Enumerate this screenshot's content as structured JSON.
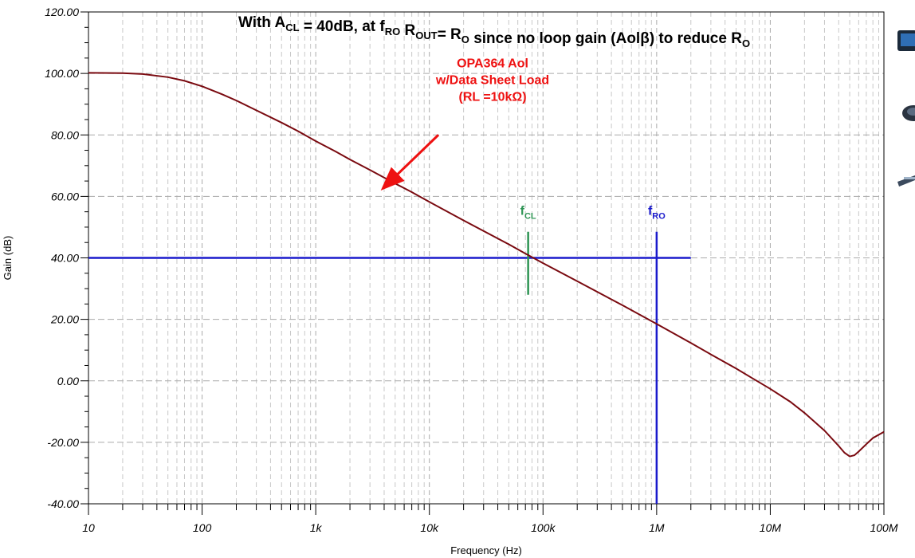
{
  "chart_data": {
    "type": "line",
    "title": {
      "segments": [
        {
          "t": "With A"
        },
        {
          "t": "CL",
          "sub": true
        },
        {
          "t": " = 40dB, at f"
        },
        {
          "t": "RO",
          "sub": true
        },
        {
          "t": " R"
        },
        {
          "t": "OUT",
          "sub": true
        },
        {
          "t": "= R"
        },
        {
          "t": "O",
          "sub": true
        },
        {
          "t": " since no loop gain (Aol"
        },
        {
          "t": "β"
        },
        {
          "t": ") to reduce R"
        },
        {
          "t": "O",
          "sub": true
        }
      ]
    },
    "xlabel": "Frequency (Hz)",
    "ylabel": "Gain (dB)",
    "x_scale": "log",
    "xlim": [
      10,
      100000000
    ],
    "ylim": [
      -40,
      120
    ],
    "x_ticks": [
      {
        "value": 10,
        "label": "10"
      },
      {
        "value": 100,
        "label": "100"
      },
      {
        "value": 1000,
        "label": "1k"
      },
      {
        "value": 10000,
        "label": "10k"
      },
      {
        "value": 100000,
        "label": "100k"
      },
      {
        "value": 1000000,
        "label": "1M"
      },
      {
        "value": 10000000,
        "label": "10M"
      },
      {
        "value": 100000000,
        "label": "100M"
      }
    ],
    "y_ticks": [
      {
        "value": 120,
        "label": "120.00"
      },
      {
        "value": 100,
        "label": "100.00"
      },
      {
        "value": 80,
        "label": "80.00"
      },
      {
        "value": 60,
        "label": "60.00"
      },
      {
        "value": 40,
        "label": "40.00"
      },
      {
        "value": 20,
        "label": "20.00"
      },
      {
        "value": 0,
        "label": "0.00"
      },
      {
        "value": -20,
        "label": "-20.00"
      },
      {
        "value": -40,
        "label": "-40.00"
      }
    ],
    "grid": true,
    "series": [
      {
        "name": "OPA364 Aol w/Data Sheet Load (RL =10kΩ)",
        "color": "#7a0a10",
        "points": [
          [
            10,
            100.2
          ],
          [
            20,
            100.1
          ],
          [
            30,
            99.8
          ],
          [
            50,
            98.8
          ],
          [
            70,
            97.6
          ],
          [
            100,
            95.8
          ],
          [
            150,
            93.2
          ],
          [
            200,
            91.2
          ],
          [
            300,
            88.0
          ],
          [
            500,
            84.0
          ],
          [
            700,
            81.2
          ],
          [
            1000,
            78.0
          ],
          [
            1500,
            74.6
          ],
          [
            2000,
            72.0
          ],
          [
            3000,
            68.6
          ],
          [
            5000,
            64.2
          ],
          [
            7000,
            61.4
          ],
          [
            10000,
            58.2
          ],
          [
            20000,
            52.2
          ],
          [
            50000,
            44.4
          ],
          [
            70000,
            41.4
          ],
          [
            100000,
            38.3
          ],
          [
            200000,
            32.4
          ],
          [
            500000,
            24.6
          ],
          [
            1000000,
            18.5
          ],
          [
            2000000,
            12.3
          ],
          [
            3000000,
            8.6
          ],
          [
            5000000,
            4.0
          ],
          [
            7000000,
            0.8
          ],
          [
            10000000,
            -2.6
          ],
          [
            15000000,
            -6.8
          ],
          [
            20000000,
            -10.4
          ],
          [
            30000000,
            -16.2
          ],
          [
            40000000,
            -21.2
          ],
          [
            45000000,
            -23.4
          ],
          [
            50000000,
            -24.6
          ],
          [
            55000000,
            -24.2
          ],
          [
            60000000,
            -23.0
          ],
          [
            70000000,
            -20.6
          ],
          [
            80000000,
            -18.6
          ],
          [
            100000000,
            -16.6
          ]
        ]
      }
    ],
    "reference_lines": [
      {
        "kind": "horizontal",
        "y": 40,
        "x_from": 10,
        "x_to": 2000000,
        "color": "#1a1acc"
      },
      {
        "kind": "vertical",
        "x": 1000000,
        "y_from": -40,
        "y_to": 48.5,
        "color": "#1a1acc"
      },
      {
        "kind": "vertical",
        "x": 74000,
        "y_from": 28,
        "y_to": 48.5,
        "color": "#2e9454"
      }
    ],
    "annotations": [
      {
        "name": "aol-annotation",
        "lines": [
          "OPA364 Aol",
          "w/Data Sheet Load",
          "(RL =10kΩ)"
        ],
        "x": 36000,
        "y": 102,
        "color": "#ee1111",
        "arrow_from": [
          12000,
          80
        ],
        "arrow_to": [
          4000,
          63
        ]
      },
      {
        "name": "fcl-label",
        "segments": [
          {
            "t": "f"
          },
          {
            "t": "CL",
            "sub": true
          }
        ],
        "x": 74000,
        "y": 54,
        "color": "#2e9454"
      },
      {
        "name": "fro-label",
        "segments": [
          {
            "t": "f"
          },
          {
            "t": "RO",
            "sub": true
          }
        ],
        "x": 1000000,
        "y": 54,
        "color": "#1a1acc"
      }
    ]
  }
}
